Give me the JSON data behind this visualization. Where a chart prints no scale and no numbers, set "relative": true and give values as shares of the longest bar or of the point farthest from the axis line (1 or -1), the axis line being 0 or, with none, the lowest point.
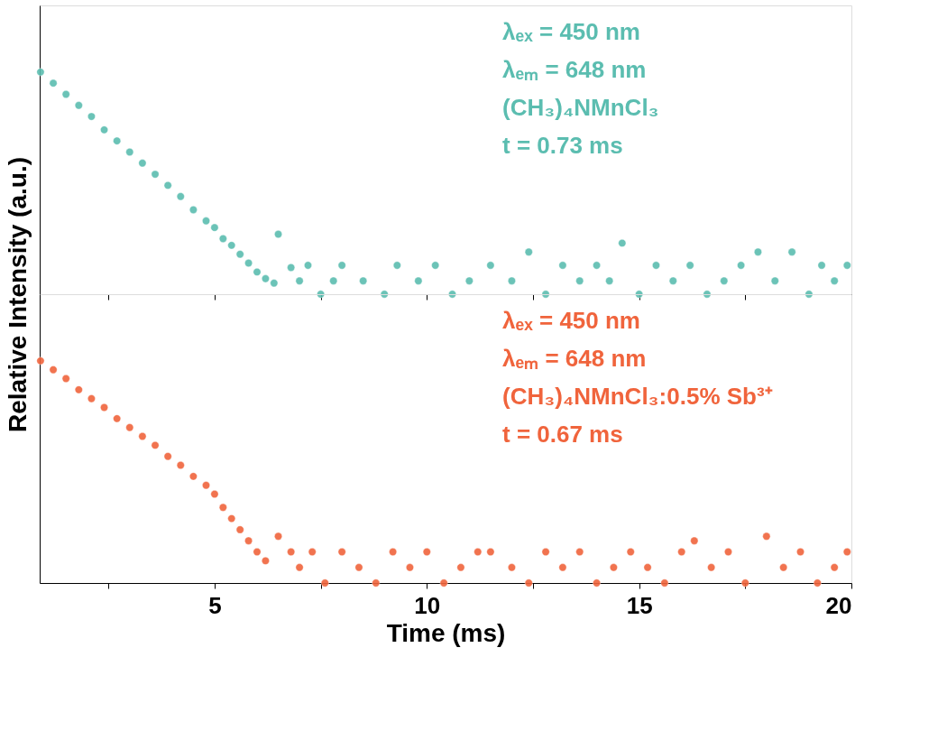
{
  "chart_data": [
    {
      "type": "scatter",
      "relative": true,
      "marker": "circle",
      "grid": false,
      "tick_labels": false,
      "xlim": [
        0.88,
        20
      ],
      "xticks": [
        {
          "value": 2.5,
          "label": null
        },
        {
          "value": 5,
          "label": null
        },
        {
          "value": 7.5,
          "label": null
        },
        {
          "value": 10,
          "label": null
        },
        {
          "value": 12.5,
          "label": null
        },
        {
          "value": 15,
          "label": null
        },
        {
          "value": 17.5,
          "label": null
        },
        {
          "value": 20,
          "label": null
        }
      ],
      "annotations": [
        "λₑₓ = 450 nm",
        "λₑₘ = 648 nm",
        "(CH₃)₄NMnCl₃",
        "t = 0.73 ms"
      ],
      "series": [
        {
          "color": "#5bbdb0",
          "x": [
            0.9,
            1.2,
            1.5,
            1.8,
            2.1,
            2.4,
            2.7,
            3.0,
            3.3,
            3.6,
            3.9,
            4.2,
            4.5,
            4.8,
            5.0,
            5.2,
            5.4,
            5.6,
            5.8,
            6.0,
            6.2,
            6.4,
            6.5,
            6.8,
            7.0,
            7.2,
            7.5,
            7.8,
            8.0,
            8.5,
            9.0,
            9.3,
            9.8,
            10.2,
            10.6,
            11.0,
            11.5,
            12.0,
            12.4,
            12.8,
            13.2,
            13.6,
            14.0,
            14.3,
            14.6,
            15.0,
            15.4,
            15.8,
            16.2,
            16.6,
            17.0,
            17.4,
            17.8,
            18.2,
            18.6,
            19.0,
            19.3,
            19.6,
            19.9
          ],
          "values": [
            1.0,
            0.95,
            0.9,
            0.85,
            0.8,
            0.74,
            0.69,
            0.64,
            0.59,
            0.54,
            0.49,
            0.44,
            0.38,
            0.33,
            0.3,
            0.25,
            0.22,
            0.18,
            0.14,
            0.1,
            0.07,
            0.05,
            0.27,
            0.12,
            0.06,
            0.13,
            0,
            0.06,
            0.13,
            0.06,
            0,
            0.13,
            0.06,
            0.13,
            0,
            0.06,
            0.13,
            0.06,
            0.19,
            0,
            0.13,
            0.06,
            0.13,
            0.06,
            0.23,
            0,
            0.13,
            0.06,
            0.13,
            0,
            0.06,
            0.13,
            0.19,
            0.06,
            0.19,
            0,
            0.13,
            0.06,
            0.13
          ]
        }
      ]
    },
    {
      "type": "scatter",
      "relative": true,
      "marker": "circle",
      "grid": false,
      "tick_labels": "x",
      "xlabel": "Time (ms)",
      "ylabel": "Relative Intensity (a.u.)",
      "xlim": [
        0.88,
        20
      ],
      "xticks": [
        {
          "value": 2.5,
          "label": null
        },
        5,
        {
          "value": 7.5,
          "label": null
        },
        10,
        {
          "value": 12.5,
          "label": null
        },
        15,
        {
          "value": 17.5,
          "label": null
        },
        20
      ],
      "annotations": [
        "λₑₓ = 450 nm",
        "λₑₘ = 648 nm",
        "(CH₃)₄NMnCl₃:0.5% Sb³⁺",
        "t = 0.67 ms"
      ],
      "series": [
        {
          "color": "#f0643c",
          "x": [
            0.9,
            1.2,
            1.5,
            1.8,
            2.1,
            2.4,
            2.7,
            3.0,
            3.3,
            3.6,
            3.9,
            4.2,
            4.5,
            4.8,
            5.0,
            5.2,
            5.4,
            5.6,
            5.8,
            6.0,
            6.2,
            6.5,
            6.8,
            7.0,
            7.3,
            7.6,
            8.0,
            8.4,
            8.8,
            9.2,
            9.6,
            10.0,
            10.4,
            10.8,
            11.2,
            11.5,
            12.0,
            12.4,
            12.8,
            13.2,
            13.6,
            14.0,
            14.4,
            14.8,
            15.2,
            15.6,
            16.0,
            16.3,
            16.7,
            17.1,
            17.5,
            18.0,
            18.4,
            18.8,
            19.2,
            19.6,
            19.9
          ],
          "values": [
            1.0,
            0.96,
            0.92,
            0.87,
            0.83,
            0.79,
            0.74,
            0.7,
            0.66,
            0.62,
            0.57,
            0.53,
            0.48,
            0.44,
            0.4,
            0.34,
            0.29,
            0.24,
            0.19,
            0.14,
            0.1,
            0.21,
            0.14,
            0.07,
            0.14,
            0,
            0.14,
            0.07,
            0,
            0.14,
            0.07,
            0.14,
            0,
            0.07,
            0.14,
            0.14,
            0.07,
            0,
            0.14,
            0.07,
            0.14,
            0,
            0.07,
            0.14,
            0.07,
            0,
            0.14,
            0.19,
            0.07,
            0.14,
            0,
            0.21,
            0.07,
            0.14,
            0,
            0.07,
            0.14
          ]
        }
      ]
    }
  ]
}
